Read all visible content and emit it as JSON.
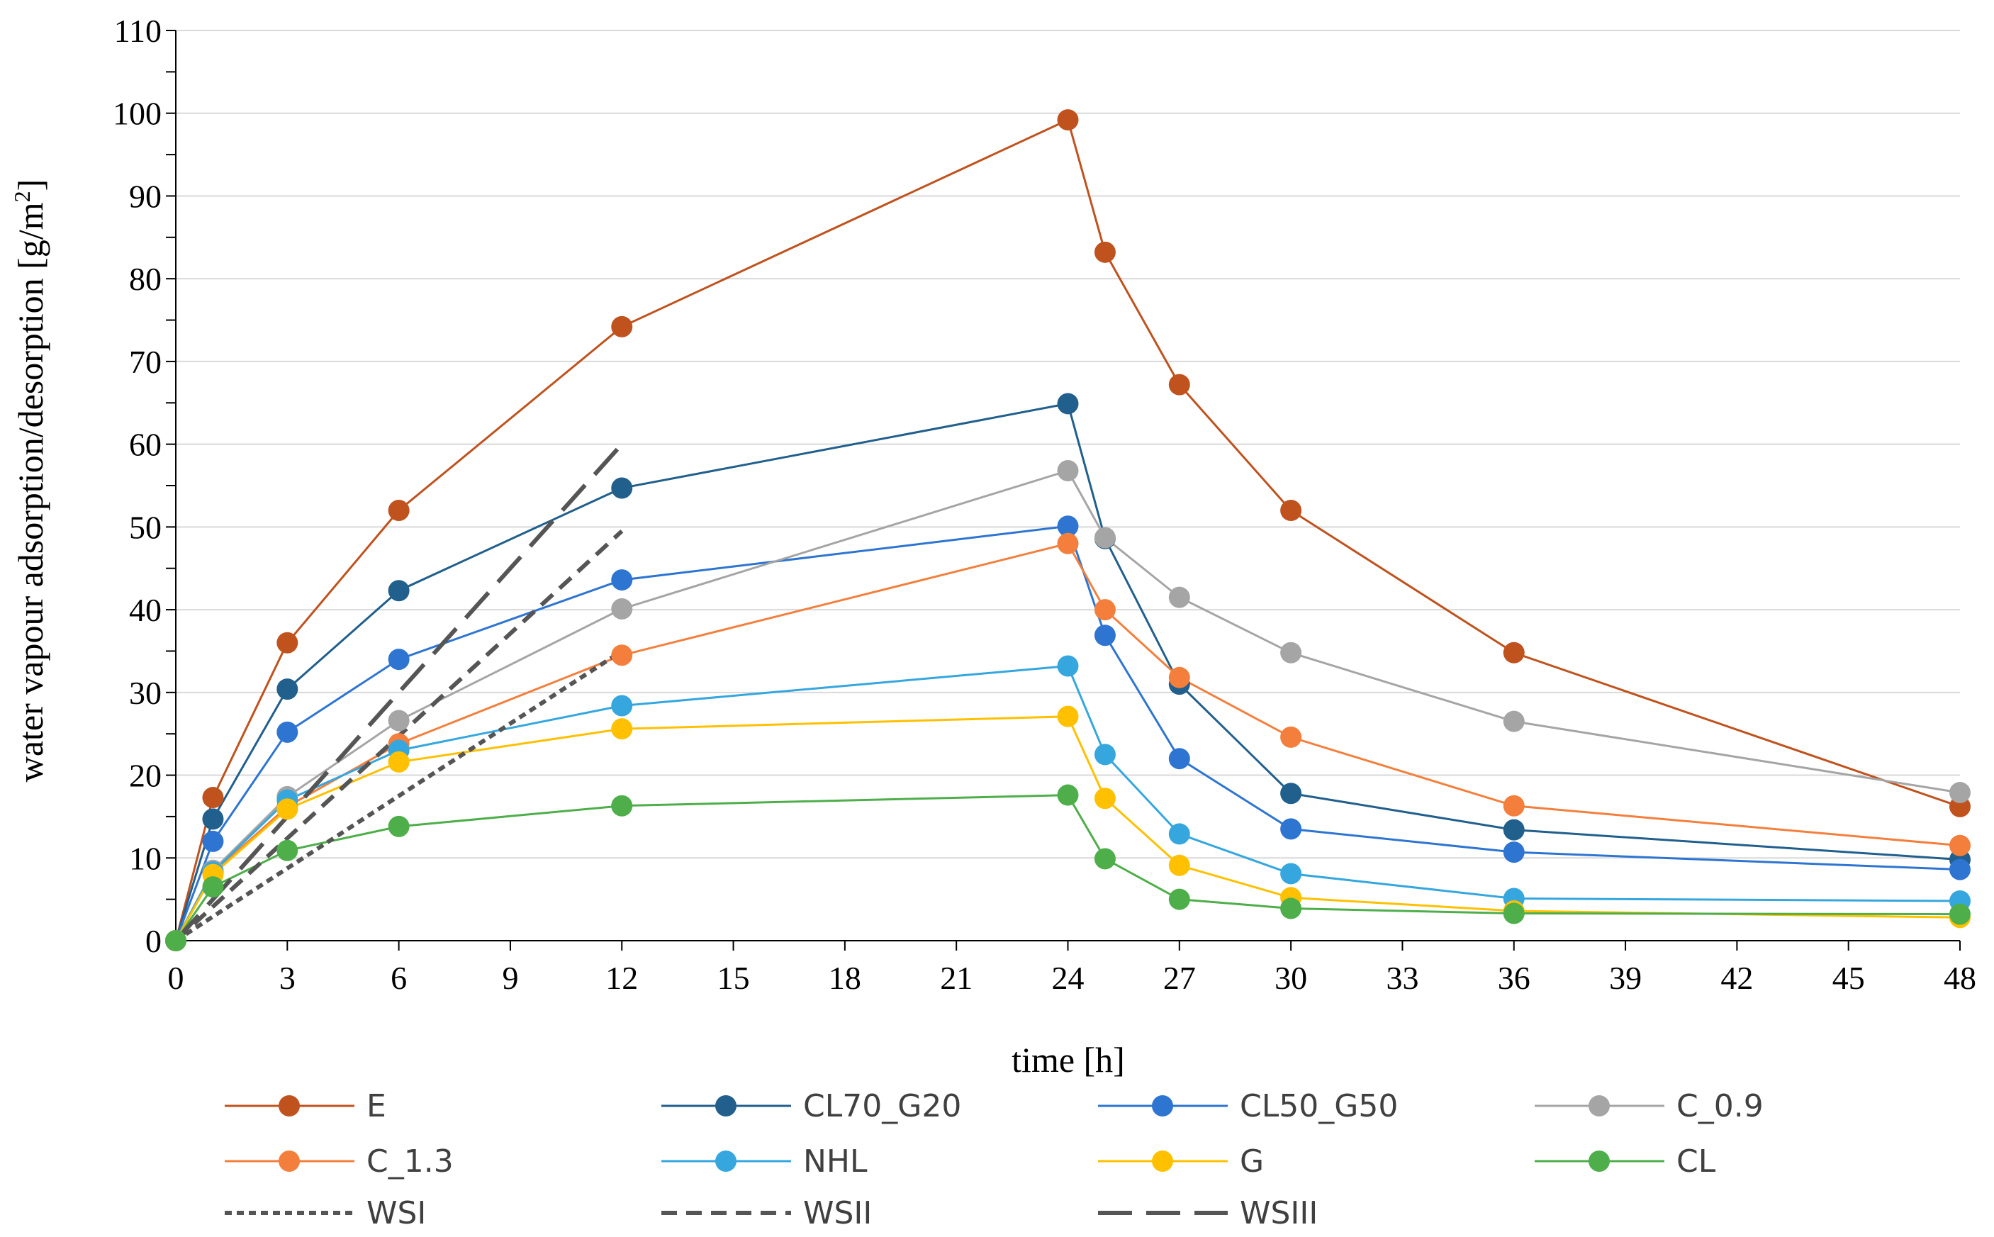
{
  "chart_data": {
    "type": "line",
    "title": "",
    "xlabel": "time [h]",
    "ylabel": "water vapour adsorption/desorption [g/m",
    "ylabel_sup": "2",
    "ylabel_end": "]",
    "x_ticks": [
      0,
      3,
      6,
      9,
      12,
      15,
      18,
      21,
      24,
      27,
      30,
      33,
      36,
      39,
      42,
      45,
      48
    ],
    "xlim": [
      0,
      48
    ],
    "ylim": [
      0,
      110
    ],
    "y_ticks": [
      0,
      10,
      20,
      30,
      40,
      50,
      60,
      70,
      80,
      90,
      100,
      110
    ],
    "grid": "horizontal",
    "legend_position": "bottom",
    "x": [
      0,
      1,
      3,
      6,
      12,
      24,
      25,
      27,
      30,
      36,
      48
    ],
    "series": [
      {
        "name": "E",
        "color": "#C0521E",
        "style": "solid-marker",
        "values": [
          0,
          17.3,
          36,
          52,
          74.2,
          99.2,
          83.2,
          67.2,
          52,
          34.8,
          16.2
        ]
      },
      {
        "name": "CL70_G20",
        "color": "#215F8C",
        "style": "solid-marker",
        "values": [
          0,
          14.7,
          30.4,
          42.3,
          54.7,
          64.9,
          48.6,
          31,
          17.8,
          13.4,
          9.8
        ]
      },
      {
        "name": "CL50_G50",
        "color": "#2E75D1",
        "style": "solid-marker",
        "values": [
          0,
          12,
          25.2,
          34,
          43.6,
          50.1,
          36.9,
          22,
          13.5,
          10.7,
          8.6
        ]
      },
      {
        "name": "C_0.9",
        "color": "#A5A5A5",
        "style": "solid-marker",
        "values": [
          0,
          8.5,
          17.4,
          26.6,
          40.1,
          56.8,
          48.7,
          41.5,
          34.8,
          26.5,
          17.9
        ]
      },
      {
        "name": "C_1.3",
        "color": "#F47F3C",
        "style": "solid-marker",
        "values": [
          0,
          8.2,
          16.2,
          23.8,
          34.5,
          48,
          40,
          31.8,
          24.6,
          16.3,
          11.5
        ]
      },
      {
        "name": "NHL",
        "color": "#35A7DE",
        "style": "solid-marker",
        "values": [
          0,
          8.3,
          17,
          23,
          28.4,
          33.2,
          22.5,
          12.9,
          8.1,
          5.1,
          4.8
        ]
      },
      {
        "name": "G",
        "color": "#FFC000",
        "style": "solid-marker",
        "values": [
          0,
          8,
          15.9,
          21.6,
          25.6,
          27.1,
          17.2,
          9.1,
          5.2,
          3.6,
          2.8
        ]
      },
      {
        "name": "CL",
        "color": "#4EAE4A",
        "style": "solid-marker",
        "values": [
          0,
          6.5,
          10.9,
          13.8,
          16.3,
          17.6,
          9.9,
          5,
          3.9,
          3.3,
          3.2
        ]
      },
      {
        "name": "WSI",
        "color": "#555555",
        "style": "dotted",
        "x": [
          0,
          12
        ],
        "values": [
          0,
          35
        ]
      },
      {
        "name": "WSII",
        "color": "#555555",
        "style": "dashed",
        "x": [
          0,
          12
        ],
        "values": [
          0,
          49.5
        ]
      },
      {
        "name": "WSIII",
        "color": "#555555",
        "style": "longdash",
        "x": [
          0,
          12
        ],
        "values": [
          0,
          60
        ]
      }
    ]
  }
}
